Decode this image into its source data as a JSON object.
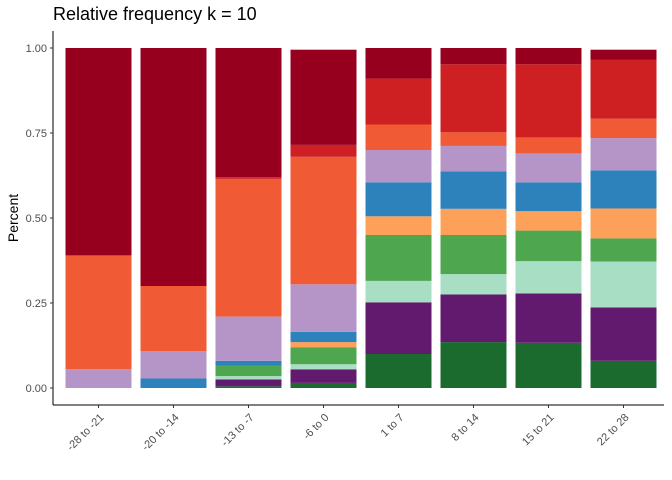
{
  "chart_data": {
    "type": "bar",
    "stacked": true,
    "title": "Relative frequency k = 10",
    "xlabel": "",
    "ylabel": "Percent",
    "ylim": [
      0,
      1
    ],
    "yticks": [
      "0.00",
      "0.25",
      "0.50",
      "0.75",
      "1.00"
    ],
    "ytick_values": [
      0,
      0.25,
      0.5,
      0.75,
      1
    ],
    "grid": false,
    "legend": "none",
    "categories": [
      "-28 to -21",
      "-20 to -14",
      "-13 to -7",
      "-6 to 0",
      "1 to 7",
      "8 to 14",
      "15 to 21",
      "22 to 28"
    ],
    "series": [
      {
        "color": "#1b6b2f",
        "values": [
          0.0,
          0.0,
          0.005,
          0.015,
          0.1,
          0.135,
          0.133,
          0.08
        ]
      },
      {
        "color": "#621a6f",
        "values": [
          0.0,
          0.0,
          0.02,
          0.04,
          0.152,
          0.14,
          0.145,
          0.157
        ]
      },
      {
        "color": "#a8dfc4",
        "values": [
          0.0,
          0.0,
          0.01,
          0.015,
          0.063,
          0.06,
          0.095,
          0.135
        ]
      },
      {
        "color": "#4ea64f",
        "values": [
          0.0,
          0.0,
          0.03,
          0.05,
          0.135,
          0.115,
          0.09,
          0.068
        ]
      },
      {
        "color": "#fda05a",
        "values": [
          0.0,
          0.0,
          0.0,
          0.015,
          0.055,
          0.077,
          0.057,
          0.088
        ]
      },
      {
        "color": "#2e82bb",
        "values": [
          0.0,
          0.028,
          0.015,
          0.03,
          0.1,
          0.11,
          0.085,
          0.112
        ]
      },
      {
        "color": "#b595c7",
        "values": [
          0.055,
          0.08,
          0.13,
          0.14,
          0.095,
          0.075,
          0.085,
          0.095
        ]
      },
      {
        "color": "#f05a35",
        "values": [
          0.335,
          0.192,
          0.405,
          0.375,
          0.075,
          0.04,
          0.047,
          0.057
        ]
      },
      {
        "color": "#ce1f22",
        "values": [
          0.0,
          0.0,
          0.005,
          0.035,
          0.135,
          0.2,
          0.215,
          0.173
        ]
      },
      {
        "color": "#96001e",
        "values": [
          0.61,
          0.7,
          0.38,
          0.28,
          0.09,
          0.048,
          0.048,
          0.03
        ]
      }
    ]
  }
}
